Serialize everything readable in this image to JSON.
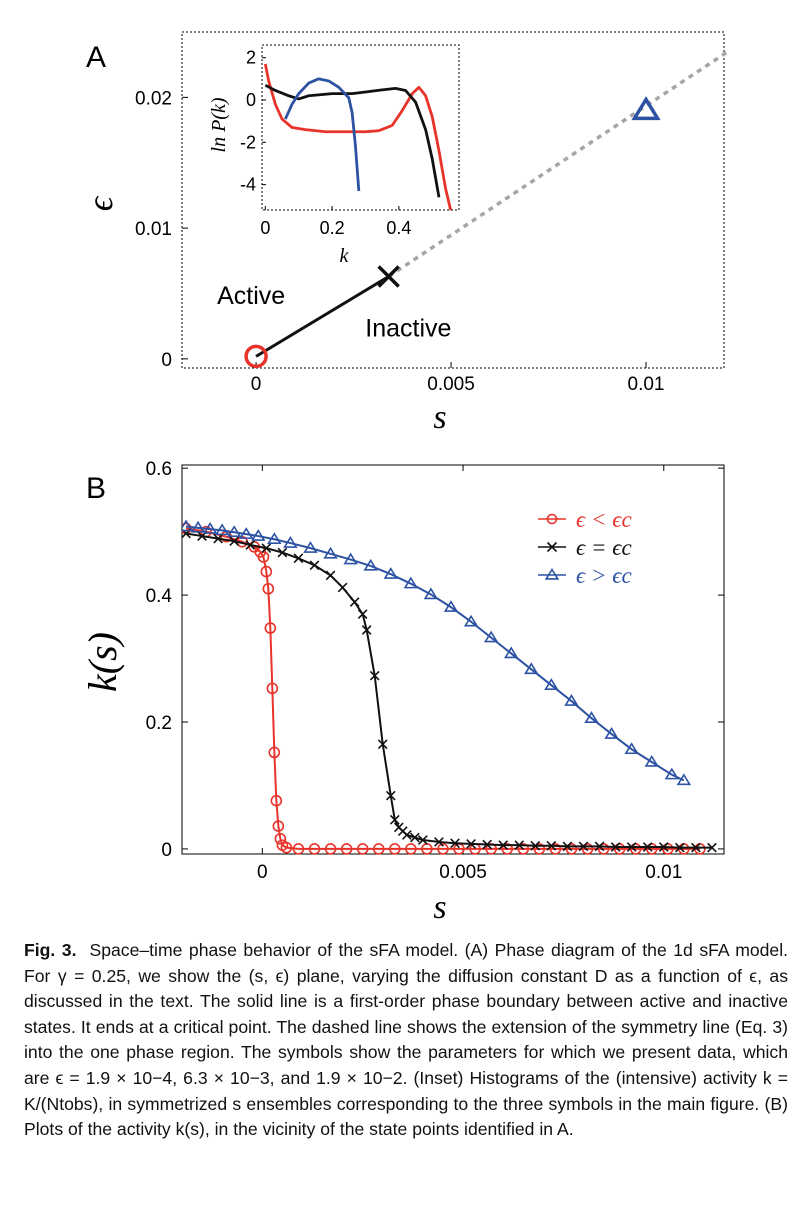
{
  "panel_a": {
    "label": "A"
  },
  "panel_b": {
    "label": "B"
  },
  "caption": {
    "label": "Fig. 3.",
    "text": "Space–time phase behavior of the sFA model. (A) Phase diagram of the 1d sFA model. For γ = 0.25, we show the (s, ϵ) plane, varying the diffusion constant D as a function of ϵ, as discussed in the text. The solid line is a first-order phase boundary between active and inactive states. It ends at a critical point. The dashed line shows the extension of the symmetry line (Eq. 3) into the one phase region. The symbols show the parameters for which we present data, which are ϵ = 1.9 × 10−4, 6.3 × 10−3, and 1.9 × 10−2. (Inset) Histograms of the (intensive) activity k = K/(Ntobs), in symmetrized s ensembles corresponding to the three symbols in the main figure. (B) Plots of the activity k(s), in the vicinity of the state points identified in A."
  },
  "colors": {
    "red": "#e8332a",
    "black": "#111111",
    "blue": "#2d52a3",
    "dashed": "#a6a6a6"
  },
  "chart_data": [
    {
      "id": "A",
      "type": "line",
      "xlabel": "s",
      "ylabel": "ϵ",
      "xlim": [
        -0.0019,
        0.012
      ],
      "ylim": [
        -0.0007,
        0.025
      ],
      "xticks": [
        0,
        0.005,
        0.01
      ],
      "xtick_labels": [
        "0",
        "0.005",
        "0.01"
      ],
      "yticks": [
        0,
        0.01,
        0.02
      ],
      "ytick_labels": [
        "0",
        "0.01",
        "0.02"
      ],
      "annotations": [
        {
          "text": "Active",
          "x": -0.001,
          "y": 0.0042
        },
        {
          "text": "Inactive",
          "x": 0.0028,
          "y": 0.0017
        }
      ],
      "lines": [
        {
          "style": "solid",
          "color": "black",
          "points": [
            [
              0.0,
              0.00019
            ],
            [
              0.0034,
              0.0063
            ]
          ]
        },
        {
          "style": "dashed",
          "color": "dashed",
          "points": [
            [
              0.0034,
              0.0063
            ],
            [
              0.0121,
              0.0235
            ]
          ]
        }
      ],
      "markers": [
        {
          "shape": "circle",
          "color": "red",
          "x": 0.0,
          "y": 0.00019
        },
        {
          "shape": "cross",
          "color": "black",
          "x": 0.0034,
          "y": 0.0063
        },
        {
          "shape": "triangle",
          "color": "blue",
          "x": 0.01,
          "y": 0.019
        }
      ]
    },
    {
      "id": "A-inset",
      "type": "line",
      "xlabel": "k",
      "ylabel": "ln P(k)",
      "xlim": [
        -0.01,
        0.58
      ],
      "ylim": [
        -5.2,
        2.6
      ],
      "xticks": [
        0,
        0.2,
        0.4
      ],
      "xtick_labels": [
        "0",
        "0.2",
        "0.4"
      ],
      "yticks": [
        2,
        0,
        -2,
        -4
      ],
      "ytick_labels": [
        "2",
        "0",
        "-2",
        "-4"
      ],
      "series": [
        {
          "color": "red",
          "points": [
            [
              0.0,
              1.7
            ],
            [
              0.01,
              0.9
            ],
            [
              0.03,
              -0.2
            ],
            [
              0.05,
              -0.9
            ],
            [
              0.08,
              -1.3
            ],
            [
              0.12,
              -1.4
            ],
            [
              0.18,
              -1.5
            ],
            [
              0.24,
              -1.5
            ],
            [
              0.3,
              -1.5
            ],
            [
              0.34,
              -1.45
            ],
            [
              0.38,
              -1.2
            ],
            [
              0.41,
              -0.5
            ],
            [
              0.44,
              0.3
            ],
            [
              0.46,
              0.6
            ],
            [
              0.48,
              0.2
            ],
            [
              0.5,
              -0.8
            ],
            [
              0.52,
              -2.4
            ],
            [
              0.54,
              -4.2
            ],
            [
              0.555,
              -5.2
            ]
          ]
        },
        {
          "color": "black",
          "points": [
            [
              0.0,
              0.7
            ],
            [
              0.03,
              0.45
            ],
            [
              0.07,
              0.2
            ],
            [
              0.1,
              0.05
            ],
            [
              0.13,
              0.2
            ],
            [
              0.2,
              0.3
            ],
            [
              0.26,
              0.3
            ],
            [
              0.3,
              0.38
            ],
            [
              0.35,
              0.48
            ],
            [
              0.39,
              0.55
            ],
            [
              0.42,
              0.45
            ],
            [
              0.45,
              -0.1
            ],
            [
              0.48,
              -1.4
            ],
            [
              0.5,
              -2.8
            ],
            [
              0.52,
              -4.6
            ]
          ]
        },
        {
          "color": "blue",
          "points": [
            [
              0.06,
              -0.9
            ],
            [
              0.08,
              -0.2
            ],
            [
              0.1,
              0.3
            ],
            [
              0.13,
              0.8
            ],
            [
              0.16,
              1.0
            ],
            [
              0.19,
              0.9
            ],
            [
              0.22,
              0.6
            ],
            [
              0.25,
              0.1
            ],
            [
              0.26,
              -0.6
            ],
            [
              0.27,
              -2.2
            ],
            [
              0.28,
              -4.3
            ]
          ]
        }
      ]
    },
    {
      "id": "B",
      "type": "line",
      "xlabel": "s",
      "ylabel": "k(s)",
      "xlim": [
        -0.002,
        0.0115
      ],
      "ylim": [
        -0.008,
        0.605
      ],
      "xticks": [
        0,
        0.005,
        0.01
      ],
      "xtick_labels": [
        "0",
        "0.005",
        "0.01"
      ],
      "yticks": [
        0,
        0.2,
        0.4,
        0.6
      ],
      "ytick_labels": [
        "0",
        "0.2",
        "0.4",
        "0.6"
      ],
      "legend_position": "top-right",
      "series": [
        {
          "name": "ϵ < ϵc",
          "color": "red",
          "marker": "circle",
          "points": [
            [
              -0.0019,
              0.505
            ],
            [
              -0.0014,
              0.5
            ],
            [
              -0.0009,
              0.492
            ],
            [
              -0.0005,
              0.484
            ],
            [
              -0.0002,
              0.476
            ],
            [
              -5e-05,
              0.468
            ],
            [
              3e-05,
              0.46
            ],
            [
              0.0001,
              0.437
            ],
            [
              0.00015,
              0.41
            ],
            [
              0.0002,
              0.348
            ],
            [
              0.00025,
              0.253
            ],
            [
              0.0003,
              0.152
            ],
            [
              0.00035,
              0.076
            ],
            [
              0.0004,
              0.036
            ],
            [
              0.00045,
              0.016
            ],
            [
              0.0005,
              0.006
            ],
            [
              0.0006,
              0.002
            ],
            [
              0.0009,
              0.0
            ],
            [
              0.0013,
              0.0
            ],
            [
              0.0017,
              0.0
            ],
            [
              0.0021,
              0.0
            ],
            [
              0.0025,
              0.0
            ],
            [
              0.0029,
              0.0
            ],
            [
              0.0033,
              0.0
            ],
            [
              0.0037,
              0.0
            ],
            [
              0.0041,
              0.0
            ],
            [
              0.0045,
              0.0
            ],
            [
              0.0049,
              0.0
            ],
            [
              0.0053,
              0.0
            ],
            [
              0.0057,
              0.0
            ],
            [
              0.0061,
              0.0
            ],
            [
              0.0065,
              0.0
            ],
            [
              0.0069,
              0.0
            ],
            [
              0.0073,
              0.0
            ],
            [
              0.0077,
              0.0
            ],
            [
              0.0081,
              0.0
            ],
            [
              0.0085,
              0.0
            ],
            [
              0.0089,
              0.0
            ],
            [
              0.0093,
              0.0
            ],
            [
              0.0097,
              0.0
            ],
            [
              0.0101,
              0.0
            ],
            [
              0.0105,
              0.0
            ],
            [
              0.0109,
              0.0
            ]
          ]
        },
        {
          "name": "ϵ = ϵc",
          "color": "black",
          "marker": "cross",
          "points": [
            [
              -0.0019,
              0.497
            ],
            [
              -0.0015,
              0.493
            ],
            [
              -0.0011,
              0.489
            ],
            [
              -0.0007,
              0.485
            ],
            [
              -0.0003,
              0.479
            ],
            [
              0.0001,
              0.474
            ],
            [
              0.0005,
              0.467
            ],
            [
              0.0009,
              0.458
            ],
            [
              0.0013,
              0.447
            ],
            [
              0.0017,
              0.431
            ],
            [
              0.002,
              0.412
            ],
            [
              0.0023,
              0.389
            ],
            [
              0.0025,
              0.37
            ],
            [
              0.0026,
              0.345
            ],
            [
              0.0028,
              0.273
            ],
            [
              0.003,
              0.165
            ],
            [
              0.0032,
              0.084
            ],
            [
              0.0033,
              0.046
            ],
            [
              0.0034,
              0.034
            ],
            [
              0.0035,
              0.028
            ],
            [
              0.0036,
              0.022
            ],
            [
              0.0038,
              0.018
            ],
            [
              0.004,
              0.014
            ],
            [
              0.0044,
              0.011
            ],
            [
              0.0048,
              0.009
            ],
            [
              0.0052,
              0.008
            ],
            [
              0.0056,
              0.007
            ],
            [
              0.006,
              0.006
            ],
            [
              0.0064,
              0.006
            ],
            [
              0.0068,
              0.005
            ],
            [
              0.0072,
              0.005
            ],
            [
              0.0076,
              0.004
            ],
            [
              0.008,
              0.004
            ],
            [
              0.0084,
              0.004
            ],
            [
              0.0088,
              0.003
            ],
            [
              0.0092,
              0.003
            ],
            [
              0.0096,
              0.003
            ],
            [
              0.01,
              0.003
            ],
            [
              0.0104,
              0.002
            ],
            [
              0.0108,
              0.002
            ],
            [
              0.0112,
              0.002
            ]
          ]
        },
        {
          "name": "ϵ > ϵc",
          "color": "blue",
          "marker": "triangle",
          "points": [
            [
              -0.0019,
              0.508
            ],
            [
              -0.0016,
              0.506
            ],
            [
              -0.0013,
              0.504
            ],
            [
              -0.001,
              0.502
            ],
            [
              -0.0007,
              0.499
            ],
            [
              -0.0004,
              0.496
            ],
            [
              -0.0001,
              0.493
            ],
            [
              0.0003,
              0.488
            ],
            [
              0.0007,
              0.482
            ],
            [
              0.0012,
              0.474
            ],
            [
              0.0017,
              0.465
            ],
            [
              0.0022,
              0.456
            ],
            [
              0.0027,
              0.446
            ],
            [
              0.0032,
              0.433
            ],
            [
              0.0037,
              0.418
            ],
            [
              0.0042,
              0.401
            ],
            [
              0.0047,
              0.381
            ],
            [
              0.0052,
              0.358
            ],
            [
              0.0057,
              0.333
            ],
            [
              0.0062,
              0.308
            ],
            [
              0.0067,
              0.283
            ],
            [
              0.0072,
              0.258
            ],
            [
              0.0077,
              0.233
            ],
            [
              0.0082,
              0.206
            ],
            [
              0.0087,
              0.181
            ],
            [
              0.0092,
              0.157
            ],
            [
              0.0097,
              0.137
            ],
            [
              0.0102,
              0.117
            ],
            [
              0.0105,
              0.108
            ]
          ]
        }
      ]
    }
  ]
}
